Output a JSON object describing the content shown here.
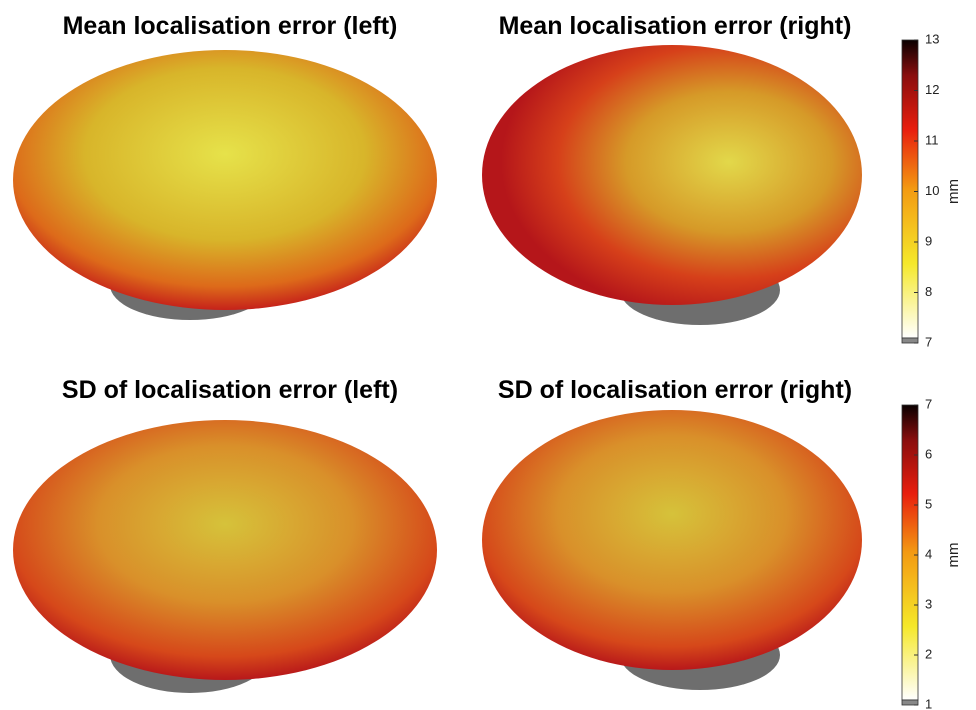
{
  "panels": [
    {
      "title": "Mean localisation error (left)"
    },
    {
      "title": "Mean localisation error (right)"
    },
    {
      "title": "SD of localisation error (left)"
    },
    {
      "title": "SD of localisation error (right)"
    }
  ],
  "colorbars": [
    {
      "label": "mm",
      "lim": [
        7,
        13
      ],
      "ticks": [
        7,
        8,
        9,
        10,
        11,
        12,
        13
      ]
    },
    {
      "label": "mm",
      "lim": [
        1,
        7
      ],
      "ticks": [
        1,
        2,
        3,
        4,
        5,
        6,
        7
      ]
    }
  ]
}
